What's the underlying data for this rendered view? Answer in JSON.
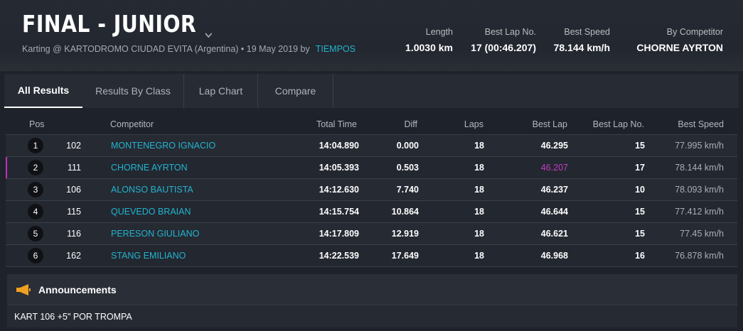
{
  "header": {
    "title": "FINAL - JUNIOR",
    "subtitle": "Karting @ KARTODROMO CIUDAD EVITA (Argentina) • 19 May 2019 by",
    "source_link": "TIEMPOS",
    "stats": {
      "length": {
        "label": "Length",
        "value": "1.0030 km"
      },
      "best_lap_no": {
        "label": "Best Lap No.",
        "value": "17 (00:46.207)"
      },
      "best_speed": {
        "label": "Best Speed",
        "value": "78.144 km/h"
      },
      "by_competitor": {
        "label": "By Competitor",
        "value": "CHORNE AYRTON"
      }
    }
  },
  "tabs": [
    {
      "label": "All Results",
      "active": true
    },
    {
      "label": "Results By Class",
      "active": false
    },
    {
      "label": "Lap Chart",
      "active": false
    },
    {
      "label": "Compare",
      "active": false
    }
  ],
  "table": {
    "columns": {
      "pos": "Pos",
      "competitor": "Competitor",
      "total_time": "Total Time",
      "diff": "Diff",
      "laps": "Laps",
      "best_lap": "Best Lap",
      "best_lap_no": "Best Lap No.",
      "best_speed": "Best Speed"
    },
    "rows": [
      {
        "pos": "1",
        "no": "102",
        "name": "MONTENEGRO IGNACIO",
        "total": "14:04.890",
        "diff": "0.000",
        "laps": "18",
        "best_lap": "46.295",
        "best_lap_no": "15",
        "best_speed": "77.995 km/h"
      },
      {
        "pos": "2",
        "no": "111",
        "name": "CHORNE AYRTON",
        "total": "14:05.393",
        "diff": "0.503",
        "laps": "18",
        "best_lap": "46.207",
        "best_lap_no": "17",
        "best_speed": "78.144 km/h"
      },
      {
        "pos": "3",
        "no": "106",
        "name": "ALONSO BAUTISTA",
        "total": "14:12.630",
        "diff": "7.740",
        "laps": "18",
        "best_lap": "46.237",
        "best_lap_no": "10",
        "best_speed": "78.093 km/h"
      },
      {
        "pos": "4",
        "no": "115",
        "name": "QUEVEDO BRAIAN",
        "total": "14:15.754",
        "diff": "10.864",
        "laps": "18",
        "best_lap": "46.644",
        "best_lap_no": "15",
        "best_speed": "77.412 km/h"
      },
      {
        "pos": "5",
        "no": "116",
        "name": "PERESON GIULIANO",
        "total": "14:17.809",
        "diff": "12.919",
        "laps": "18",
        "best_lap": "46.621",
        "best_lap_no": "15",
        "best_speed": "77.45 km/h"
      },
      {
        "pos": "6",
        "no": "162",
        "name": "STANG EMILIANO",
        "total": "14:22.539",
        "diff": "17.649",
        "laps": "18",
        "best_lap": "46.968",
        "best_lap_no": "16",
        "best_speed": "76.878 km/h"
      }
    ]
  },
  "announcements": {
    "title": "Announcements",
    "icon": "megaphone-icon",
    "text": "KART 106 +5\" POR TROMPA"
  },
  "colors": {
    "accent_link": "#23b4cf",
    "fastest_lap": "#c43dc4",
    "announce_icon": "#f0a020"
  }
}
